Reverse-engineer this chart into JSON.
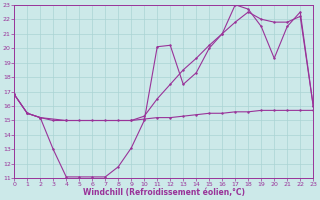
{
  "xlabel": "Windchill (Refroidissement éolien,°C)",
  "bg_color": "#cce9e9",
  "grid_color": "#aad4d4",
  "line_color": "#993399",
  "xlim": [
    0,
    23
  ],
  "ylim": [
    11,
    23
  ],
  "xticks": [
    0,
    1,
    2,
    3,
    4,
    5,
    6,
    7,
    8,
    9,
    10,
    11,
    12,
    13,
    14,
    15,
    16,
    17,
    18,
    19,
    20,
    21,
    22,
    23
  ],
  "yticks": [
    11,
    12,
    13,
    14,
    15,
    16,
    17,
    18,
    19,
    20,
    21,
    22,
    23
  ],
  "line_flat_x": [
    0,
    1,
    2,
    3,
    4,
    5,
    6,
    7,
    8,
    9,
    10,
    11,
    12,
    13,
    14,
    15,
    16,
    17,
    18,
    19,
    20,
    21,
    22,
    23
  ],
  "line_flat_y": [
    16.8,
    15.5,
    15.2,
    15.0,
    15.0,
    15.0,
    15.0,
    15.0,
    15.0,
    15.0,
    15.1,
    15.2,
    15.2,
    15.3,
    15.4,
    15.5,
    15.5,
    15.6,
    15.6,
    15.7,
    15.7,
    15.7,
    15.7,
    15.7
  ],
  "line_upper_x": [
    0,
    1,
    2,
    4,
    9,
    10,
    11,
    12,
    13,
    14,
    15,
    16,
    17,
    18,
    19,
    20,
    21,
    22,
    23
  ],
  "line_upper_y": [
    16.8,
    15.5,
    15.2,
    15.0,
    15.0,
    15.3,
    16.5,
    17.5,
    18.5,
    19.3,
    20.2,
    21.0,
    21.8,
    22.5,
    22.0,
    21.8,
    21.8,
    22.2,
    16.0
  ],
  "line_lower_x": [
    0,
    1,
    2,
    3,
    4,
    5,
    6,
    7,
    8,
    9,
    10,
    11,
    12,
    13,
    14,
    15,
    16,
    17,
    18,
    19,
    20,
    21,
    22,
    23
  ],
  "line_lower_y": [
    16.8,
    15.5,
    15.2,
    13.0,
    11.1,
    11.1,
    11.1,
    11.1,
    11.8,
    13.1,
    15.0,
    20.1,
    20.2,
    17.5,
    18.3,
    20.0,
    21.0,
    23.0,
    22.7,
    21.5,
    19.3,
    21.5,
    22.5,
    16.0
  ]
}
